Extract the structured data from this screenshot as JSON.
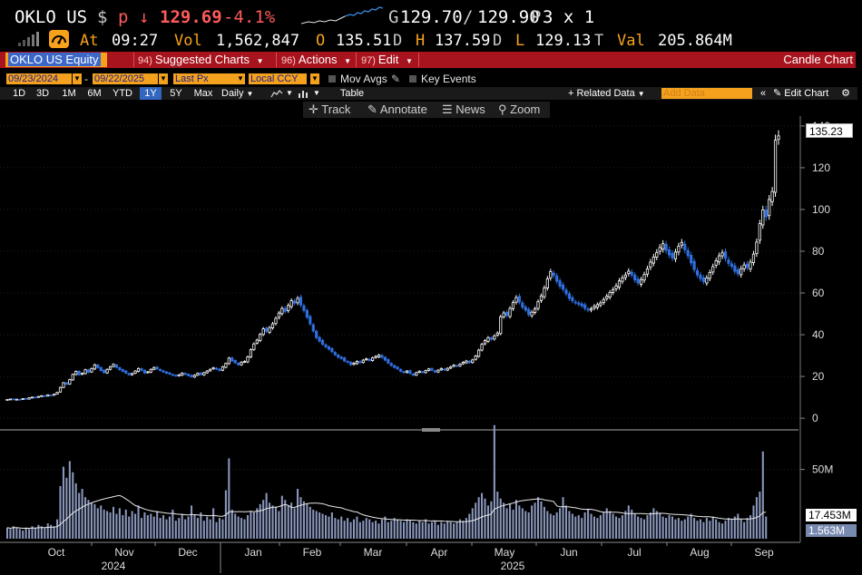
{
  "quote": {
    "ticker": "OKLO US",
    "currency_symbol": "$",
    "price_flag": "p",
    "arrow": "↓",
    "last": "129.69",
    "change_pct": "-4.1%",
    "bid_prefix": "G",
    "bid": "129.70",
    "slash": "/",
    "ask": "129.90",
    "ask_suffix": "P",
    "size": "3 x 1",
    "at_label": "At",
    "at_time": "09:27",
    "vol_label": "Vol",
    "volume": "1,562,847",
    "open_label": "O",
    "open": "135.51",
    "open_suffix": "D",
    "high_label": "H",
    "high": "137.59",
    "high_suffix": "D",
    "low_label": "L",
    "low": "129.13",
    "low_suffix": "T",
    "val_label": "Val",
    "value": "205.864M"
  },
  "toolbar": {
    "security": "OKLO US Equity",
    "suggested_num": "94)",
    "suggested": "Suggested Charts",
    "actions_num": "96)",
    "actions": "Actions",
    "edit_num": "97)",
    "edit": "Edit",
    "title": "Candle Chart"
  },
  "settings": {
    "start_date": "09/23/2024",
    "dash": "-",
    "end_date": "09/22/2025",
    "field": "Last Px",
    "currency": "Local CCY",
    "mov_avgs": "Mov Avgs",
    "key_events": "Key Events"
  },
  "periods": [
    "1D",
    "3D",
    "1M",
    "6M",
    "YTD",
    "1Y",
    "5Y",
    "Max"
  ],
  "selected_period": "1Y",
  "period_row": {
    "frequency": "Daily",
    "table": "Table",
    "related_data": "+ Related Data",
    "add_data_placeholder": "Add Data",
    "edit_chart": "Edit Chart"
  },
  "tools": {
    "track": "Track",
    "annotate": "Annotate",
    "news": "News",
    "zoom": "Zoom"
  },
  "colors": {
    "amber": "#f7a21b",
    "toolbar_red": "#a8141e",
    "up_candle": "#ffffff",
    "down_candle": "#2f6fe0",
    "volume_bar": "#8a97bd",
    "selected_period": "#3366c0"
  },
  "chart_data": {
    "type": "candlestick",
    "price_axis": {
      "ticks": [
        0,
        20,
        40,
        60,
        80,
        100,
        120,
        140
      ],
      "range": [
        -3,
        143
      ]
    },
    "volume_axis": {
      "ticks": [
        {
          "value": 50,
          "label": "50M"
        }
      ],
      "range": [
        0,
        72
      ]
    },
    "last_price_tag": "135.23",
    "volume_tags": [
      "17.453M",
      "1.563M"
    ],
    "months": [
      "Oct",
      "Nov",
      "Dec",
      "Jan",
      "Feb",
      "Mar",
      "Apr",
      "May",
      "Jun",
      "Jul",
      "Aug",
      "Sep"
    ],
    "years": [
      "2024",
      "2025"
    ],
    "closes": [
      9.0,
      9.2,
      8.8,
      9.1,
      9.0,
      9.4,
      9.2,
      9.8,
      10.1,
      9.9,
      10.4,
      10.8,
      10.5,
      11.2,
      11.0,
      11.5,
      12.4,
      14.8,
      17.0,
      16.2,
      18.5,
      21.0,
      22.4,
      20.8,
      21.5,
      23.2,
      22.0,
      23.8,
      25.6,
      24.2,
      22.8,
      21.8,
      23.4,
      24.6,
      25.8,
      24.3,
      23.2,
      22.4,
      21.6,
      20.8,
      21.4,
      22.6,
      23.8,
      22.9,
      21.6,
      22.2,
      23.4,
      24.3,
      23.6,
      22.8,
      22.1,
      21.5,
      21.1,
      20.6,
      20.2,
      20.8,
      21.6,
      21.0,
      20.4,
      19.8,
      20.6,
      21.5,
      20.9,
      21.8,
      22.6,
      23.4,
      24.1,
      23.5,
      22.8,
      24.6,
      26.2,
      28.8,
      27.4,
      26.5,
      25.6,
      26.8,
      27.2,
      29.4,
      32.8,
      35.6,
      37.4,
      40.1,
      42.8,
      41.6,
      43.4,
      45.2,
      47.8,
      50.4,
      52.6,
      51.2,
      54.0,
      56.3,
      55.1,
      57.4,
      54.2,
      51.6,
      48.4,
      45.2,
      41.8,
      38.6,
      36.9,
      35.4,
      34.2,
      33.1,
      31.8,
      30.4,
      29.2,
      28.6,
      27.4,
      26.8,
      25.6,
      26.4,
      27.2,
      26.6,
      27.8,
      28.4,
      27.6,
      28.9,
      29.6,
      30.2,
      29.1,
      27.8,
      26.4,
      25.2,
      24.3,
      23.6,
      22.4,
      21.8,
      22.6,
      21.4,
      20.6,
      21.8,
      22.5,
      21.9,
      22.8,
      23.6,
      22.9,
      22.1,
      23.0,
      23.8,
      23.1,
      23.9,
      24.6,
      25.4,
      25.0,
      25.9,
      26.8,
      27.4,
      26.6,
      27.9,
      29.8,
      32.6,
      35.4,
      37.2,
      38.6,
      37.8,
      39.4,
      40.8,
      48.6,
      50.4,
      49.2,
      52.6,
      55.4,
      57.8,
      55.6,
      53.2,
      51.8,
      49.6,
      50.8,
      52.4,
      55.8,
      58.6,
      62.4,
      66.8,
      70.2,
      68.4,
      65.6,
      63.2,
      61.8,
      59.6,
      57.4,
      56.2,
      55.4,
      54.6,
      53.8,
      52.6,
      51.8,
      52.4,
      53.6,
      54.4,
      55.2,
      56.8,
      58.4,
      60.2,
      61.6,
      63.4,
      65.8,
      67.2,
      68.6,
      70.4,
      68.6,
      66.2,
      64.8,
      66.4,
      68.8,
      71.6,
      74.8,
      77.2,
      79.4,
      81.8,
      83.6,
      80.4,
      78.2,
      76.8,
      79.6,
      82.4,
      84.2,
      80.6,
      77.8,
      74.4,
      71.2,
      68.6,
      66.8,
      65.4,
      67.2,
      69.8,
      72.6,
      75.4,
      77.8,
      79.2,
      76.6,
      74.2,
      72.8,
      70.4,
      69.2,
      71.6,
      73.4,
      72.2,
      74.8,
      78.6,
      84.4,
      93.2,
      99.8,
      96.4,
      104.8,
      108.6,
      133.2,
      135.23
    ],
    "volumes": [
      8,
      7,
      9,
      8,
      7,
      6,
      8,
      7,
      9,
      8,
      10,
      9,
      8,
      11,
      10,
      9,
      14,
      38,
      52,
      44,
      56,
      48,
      40,
      33,
      36,
      30,
      28,
      26,
      25,
      22,
      24,
      21,
      20,
      19,
      23,
      18,
      22,
      17,
      21,
      16,
      20,
      18,
      24,
      15,
      19,
      17,
      18,
      16,
      20,
      15,
      17,
      14,
      16,
      21,
      13,
      15,
      18,
      14,
      16,
      24,
      17,
      15,
      19,
      13,
      16,
      14,
      22,
      12,
      15,
      14,
      35,
      58,
      21,
      18,
      16,
      15,
      14,
      17,
      20,
      19,
      22,
      25,
      28,
      33,
      26,
      24,
      23,
      20,
      31,
      28,
      24,
      26,
      22,
      36,
      30,
      27,
      25,
      23,
      21,
      20,
      19,
      18,
      17,
      16,
      19,
      15,
      14,
      16,
      13,
      15,
      12,
      14,
      16,
      12,
      13,
      15,
      14,
      12,
      13,
      11,
      14,
      16,
      12,
      13,
      15,
      14,
      13,
      12,
      14,
      13,
      12,
      11,
      13,
      12,
      14,
      11,
      12,
      13,
      10,
      12,
      11,
      13,
      12,
      11,
      12,
      14,
      13,
      15,
      18,
      22,
      26,
      30,
      33,
      29,
      24,
      27,
      82,
      34,
      29,
      26,
      22,
      25,
      21,
      28,
      24,
      22,
      20,
      19,
      24,
      26,
      30,
      27,
      23,
      20,
      18,
      17,
      19,
      22,
      30,
      24,
      20,
      18,
      16,
      17,
      15,
      19,
      21,
      18,
      16,
      15,
      17,
      19,
      22,
      20,
      18,
      16,
      15,
      17,
      20,
      24,
      21,
      18,
      16,
      15,
      14,
      17,
      19,
      22,
      20,
      18,
      16,
      15,
      17,
      16,
      14,
      15,
      13,
      14,
      16,
      18,
      15,
      13,
      14,
      12,
      15,
      13,
      16,
      14,
      12,
      11,
      13,
      15,
      14,
      16,
      18,
      14,
      12,
      15,
      17,
      24,
      30,
      34,
      63,
      16
    ]
  }
}
